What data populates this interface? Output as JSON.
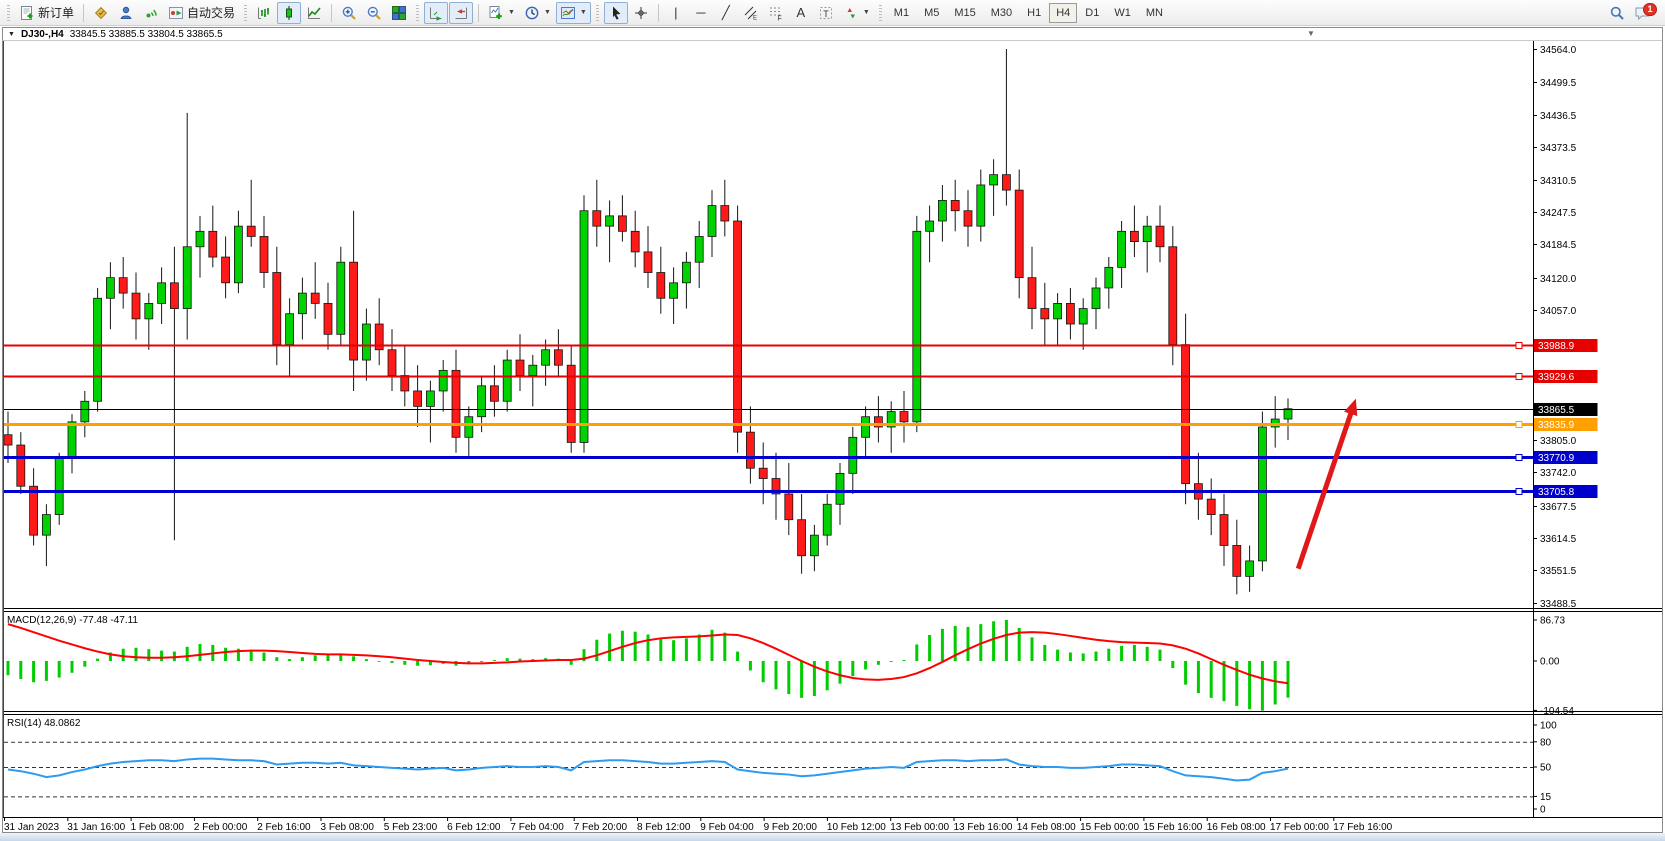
{
  "toolbar": {
    "new_order_label": "新订单",
    "autotrading_label": "自动交易",
    "timeframes": [
      "M1",
      "M5",
      "M15",
      "M30",
      "H1",
      "H4",
      "D1",
      "W1",
      "MN"
    ],
    "active_timeframe": "H4",
    "notification_count": "1",
    "caret_glyph": "▼",
    "glyphs": {
      "vline": "|",
      "hline": "─",
      "trendline": "╱",
      "text": "A"
    }
  },
  "window": {
    "symbol": "DJ30-,H4",
    "ohlc": "33845.5 33885.5 33804.5 33865.5",
    "dropdown_glyph": "▼",
    "shift_marker_glyph": "▼"
  },
  "indicators": {
    "macd_label": "MACD(12,26,9) -77.48 -47.11",
    "rsi_label": "RSI(14) 48.0862"
  },
  "chart_data": {
    "type": "candlestick",
    "symbol": "DJ30",
    "timeframe": "H4",
    "colors": {
      "up": "#00d200",
      "down": "#ff1a1a",
      "wick": "#151515",
      "macd_hist": "#00cc00",
      "macd_signal": "#ff0000",
      "rsi_line": "#2e9bf0",
      "level_red": "#e60000",
      "level_orange": "#ffa000",
      "level_blue": "#0000cc",
      "current": "#000000",
      "arrow": "#e01818"
    },
    "y_axis": {
      "ticks": [
        {
          "price": 34564.0,
          "label": "34564.0"
        },
        {
          "price": 34499.5,
          "label": "34499.5"
        },
        {
          "price": 34436.5,
          "label": "34436.5"
        },
        {
          "price": 34373.5,
          "label": "34373.5"
        },
        {
          "price": 34310.5,
          "label": "34310.5"
        },
        {
          "price": 34247.5,
          "label": "34247.5"
        },
        {
          "price": 34184.5,
          "label": "34184.5"
        },
        {
          "price": 34120.0,
          "label": "34120.0"
        },
        {
          "price": 34057.0,
          "label": "34057.0"
        },
        {
          "price": 33805.0,
          "label": "33805.0"
        },
        {
          "price": 33742.0,
          "label": "33742.0"
        },
        {
          "price": 33677.5,
          "label": "33677.5"
        },
        {
          "price": 33614.5,
          "label": "33614.5"
        },
        {
          "price": 33551.5,
          "label": "33551.5"
        },
        {
          "price": 33488.5,
          "label": "33488.5"
        }
      ]
    },
    "price_lines": [
      {
        "price": 33988.9,
        "label": "33988.9",
        "color_key": "level_red",
        "width": 2,
        "current": false
      },
      {
        "price": 33929.6,
        "label": "33929.6",
        "color_key": "level_red",
        "width": 2,
        "current": false
      },
      {
        "price": 33865.5,
        "label": "33865.5",
        "color_key": "current",
        "width": 1,
        "current": true
      },
      {
        "price": 33835.9,
        "label": "33835.9",
        "color_key": "level_orange",
        "width": 3,
        "current": false
      },
      {
        "price": 33770.9,
        "label": "33770.9",
        "color_key": "level_blue",
        "width": 3,
        "current": false
      },
      {
        "price": 33705.8,
        "label": "33705.8",
        "color_key": "level_blue",
        "width": 3,
        "current": false
      }
    ],
    "time_axis": {
      "labels": [
        "31 Jan 2023",
        "31 Jan 16:00",
        "1 Feb 08:00",
        "2 Feb 00:00",
        "2 Feb 16:00",
        "3 Feb 08:00",
        "5 Feb 23:00",
        "6 Feb 12:00",
        "7 Feb 04:00",
        "7 Feb 20:00",
        "8 Feb 12:00",
        "9 Feb 04:00",
        "9 Feb 20:00",
        "10 Feb 12:00",
        "13 Feb 00:00",
        "13 Feb 16:00",
        "14 Feb 08:00",
        "15 Feb 00:00",
        "15 Feb 16:00",
        "16 Feb 08:00",
        "17 Feb 00:00",
        "17 Feb 16:00"
      ]
    },
    "candles": [
      [
        33815,
        33860,
        33760,
        33795
      ],
      [
        33795,
        33820,
        33700,
        33715
      ],
      [
        33715,
        33750,
        33600,
        33620
      ],
      [
        33620,
        33680,
        33560,
        33660
      ],
      [
        33660,
        33780,
        33640,
        33770
      ],
      [
        33770,
        33855,
        33740,
        33840
      ],
      [
        33840,
        33900,
        33810,
        33880
      ],
      [
        33880,
        34100,
        33860,
        34080
      ],
      [
        34080,
        34150,
        34020,
        34120
      ],
      [
        34120,
        34160,
        34060,
        34090
      ],
      [
        34090,
        34130,
        34000,
        34040
      ],
      [
        34040,
        34090,
        33980,
        34070
      ],
      [
        34070,
        34140,
        34030,
        34110
      ],
      [
        34110,
        34180,
        33610,
        34060
      ],
      [
        34060,
        34440,
        34000,
        34180
      ],
      [
        34180,
        34240,
        34120,
        34210
      ],
      [
        34210,
        34260,
        34140,
        34160
      ],
      [
        34160,
        34200,
        34080,
        34110
      ],
      [
        34110,
        34250,
        34090,
        34220
      ],
      [
        34220,
        34310,
        34180,
        34200
      ],
      [
        34200,
        34240,
        34100,
        34130
      ],
      [
        34130,
        34180,
        33950,
        33990
      ],
      [
        33990,
        34080,
        33930,
        34050
      ],
      [
        34050,
        34120,
        34000,
        34090
      ],
      [
        34090,
        34150,
        34040,
        34070
      ],
      [
        34070,
        34110,
        33980,
        34010
      ],
      [
        34010,
        34180,
        33990,
        34150
      ],
      [
        34150,
        34250,
        33900,
        33960
      ],
      [
        33960,
        34060,
        33920,
        34030
      ],
      [
        34030,
        34080,
        33950,
        33980
      ],
      [
        33980,
        34020,
        33900,
        33930
      ],
      [
        33930,
        33990,
        33870,
        33900
      ],
      [
        33900,
        33950,
        33830,
        33870
      ],
      [
        33870,
        33920,
        33800,
        33900
      ],
      [
        33900,
        33960,
        33860,
        33940
      ],
      [
        33940,
        33980,
        33780,
        33810
      ],
      [
        33810,
        33870,
        33770,
        33850
      ],
      [
        33850,
        33930,
        33820,
        33910
      ],
      [
        33910,
        33950,
        33850,
        33880
      ],
      [
        33880,
        33980,
        33860,
        33960
      ],
      [
        33960,
        34010,
        33900,
        33930
      ],
      [
        33930,
        33970,
        33870,
        33950
      ],
      [
        33950,
        34000,
        33910,
        33980
      ],
      [
        33980,
        34020,
        33930,
        33950
      ],
      [
        33950,
        33990,
        33780,
        33800
      ],
      [
        33800,
        34280,
        33780,
        34250
      ],
      [
        34250,
        34310,
        34180,
        34220
      ],
      [
        34220,
        34270,
        34150,
        34240
      ],
      [
        34240,
        34280,
        34190,
        34210
      ],
      [
        34210,
        34250,
        34140,
        34170
      ],
      [
        34170,
        34220,
        34100,
        34130
      ],
      [
        34130,
        34180,
        34050,
        34080
      ],
      [
        34080,
        34140,
        34030,
        34110
      ],
      [
        34110,
        34170,
        34060,
        34150
      ],
      [
        34150,
        34230,
        34100,
        34200
      ],
      [
        34200,
        34290,
        34160,
        34260
      ],
      [
        34260,
        34310,
        34200,
        34230
      ],
      [
        34230,
        34260,
        33780,
        33820
      ],
      [
        33820,
        33870,
        33720,
        33750
      ],
      [
        33750,
        33800,
        33680,
        33730
      ],
      [
        33730,
        33780,
        33650,
        33700
      ],
      [
        33700,
        33760,
        33620,
        33650
      ],
      [
        33650,
        33700,
        33545,
        33580
      ],
      [
        33580,
        33640,
        33550,
        33620
      ],
      [
        33620,
        33700,
        33600,
        33680
      ],
      [
        33680,
        33760,
        33640,
        33740
      ],
      [
        33740,
        33830,
        33700,
        33810
      ],
      [
        33810,
        33870,
        33770,
        33850
      ],
      [
        33850,
        33890,
        33800,
        33830
      ],
      [
        33830,
        33880,
        33780,
        33860
      ],
      [
        33860,
        33900,
        33800,
        33840
      ],
      [
        33840,
        34240,
        33820,
        34210
      ],
      [
        34210,
        34260,
        34150,
        34230
      ],
      [
        34230,
        34300,
        34190,
        34270
      ],
      [
        34270,
        34310,
        34210,
        34250
      ],
      [
        34250,
        34290,
        34180,
        34220
      ],
      [
        34220,
        34330,
        34190,
        34300
      ],
      [
        34300,
        34350,
        34240,
        34320
      ],
      [
        34320,
        34564,
        34260,
        34290
      ],
      [
        34290,
        34330,
        34080,
        34120
      ],
      [
        34120,
        34180,
        34020,
        34060
      ],
      [
        34060,
        34110,
        33990,
        34040
      ],
      [
        34040,
        34090,
        33990,
        34070
      ],
      [
        34070,
        34100,
        34000,
        34030
      ],
      [
        34030,
        34080,
        33980,
        34060
      ],
      [
        34060,
        34120,
        34020,
        34100
      ],
      [
        34100,
        34160,
        34060,
        34140
      ],
      [
        34140,
        34230,
        34100,
        34210
      ],
      [
        34210,
        34260,
        34160,
        34190
      ],
      [
        34190,
        34240,
        34130,
        34220
      ],
      [
        34220,
        34260,
        34150,
        34180
      ],
      [
        34180,
        34220,
        33950,
        33990
      ],
      [
        33990,
        34050,
        33680,
        33720
      ],
      [
        33720,
        33780,
        33650,
        33690
      ],
      [
        33690,
        33730,
        33620,
        33660
      ],
      [
        33660,
        33700,
        33560,
        33600
      ],
      [
        33600,
        33650,
        33505,
        33540
      ],
      [
        33540,
        33600,
        33510,
        33570
      ],
      [
        33570,
        33860,
        33550,
        33830
      ],
      [
        33830,
        33890,
        33790,
        33845.5
      ],
      [
        33845.5,
        33885.5,
        33804.5,
        33865.5
      ]
    ],
    "macd": {
      "histogram": [
        -30,
        -38,
        -45,
        -42,
        -35,
        -25,
        -12,
        5,
        18,
        26,
        28,
        25,
        22,
        20,
        30,
        36,
        34,
        28,
        26,
        24,
        18,
        8,
        4,
        8,
        12,
        14,
        16,
        10,
        4,
        0,
        -4,
        -8,
        -10,
        -9,
        -6,
        -10,
        -7,
        -2,
        2,
        6,
        5,
        4,
        6,
        5,
        -8,
        25,
        45,
        58,
        64,
        62,
        56,
        48,
        44,
        48,
        56,
        66,
        60,
        20,
        -20,
        -45,
        -60,
        -70,
        -78,
        -74,
        -62,
        -48,
        -32,
        -18,
        -8,
        -2,
        2,
        35,
        55,
        68,
        74,
        72,
        78,
        84,
        87,
        70,
        50,
        34,
        24,
        18,
        16,
        20,
        26,
        32,
        34,
        30,
        24,
        -15,
        -50,
        -68,
        -78,
        -85,
        -95,
        -102,
        -105,
        -92,
        -77.48
      ],
      "signal": [
        78,
        70,
        61,
        52,
        43,
        35,
        27,
        20,
        14,
        10,
        8,
        7,
        7,
        8,
        10,
        13,
        16,
        19,
        21,
        22,
        22,
        21,
        19,
        17,
        15,
        14,
        14,
        13,
        12,
        10,
        8,
        5,
        2,
        0,
        -2,
        -4,
        -5,
        -5,
        -4,
        -3,
        -1,
        0,
        1,
        2,
        2,
        5,
        12,
        21,
        30,
        38,
        44,
        48,
        50,
        51,
        52,
        54,
        56,
        55,
        48,
        38,
        26,
        13,
        0,
        -12,
        -22,
        -30,
        -36,
        -39,
        -40,
        -38,
        -34,
        -26,
        -15,
        -2,
        12,
        25,
        37,
        47,
        55,
        60,
        61,
        60,
        57,
        53,
        49,
        45,
        42,
        40,
        39,
        38,
        37,
        33,
        26,
        16,
        4,
        -8,
        -19,
        -29,
        -37,
        -43,
        -47.11
      ],
      "axis_ticks": [
        {
          "value": 86.73,
          "label": "86.73"
        },
        {
          "value": 0,
          "label": "0.00"
        },
        {
          "value": -104.54,
          "label": "-104.54"
        }
      ]
    },
    "rsi": {
      "values": [
        47,
        45,
        42,
        38,
        40,
        44,
        47,
        51,
        54,
        56,
        57,
        58,
        58,
        57,
        59,
        60,
        60,
        59,
        58,
        58,
        57,
        53,
        54,
        55,
        55,
        54,
        55,
        52,
        51,
        50,
        49,
        48,
        47,
        48,
        49,
        46,
        47,
        49,
        50,
        51,
        50,
        50,
        51,
        50,
        46,
        56,
        57,
        58,
        58,
        57,
        56,
        54,
        54,
        55,
        56,
        57,
        56,
        47,
        45,
        43,
        42,
        41,
        39,
        40,
        42,
        44,
        46,
        48,
        49,
        50,
        49,
        56,
        57,
        58,
        58,
        57,
        58,
        58,
        59,
        53,
        51,
        50,
        50,
        49,
        49,
        50,
        51,
        53,
        53,
        52,
        51,
        45,
        40,
        39,
        38,
        36,
        34,
        35,
        43,
        45,
        48.09
      ],
      "levels": [
        80,
        50,
        15
      ],
      "axis_ticks": [
        {
          "value": 100,
          "label": "100"
        },
        {
          "value": 80,
          "label": "80"
        },
        {
          "value": 50,
          "label": "50"
        },
        {
          "value": 15,
          "label": "15"
        },
        {
          "value": 0,
          "label": "0"
        }
      ]
    },
    "annotation_arrow": {
      "from_index": 100.8,
      "from_price": 33555,
      "to_index": 105.3,
      "to_price": 33885
    }
  }
}
